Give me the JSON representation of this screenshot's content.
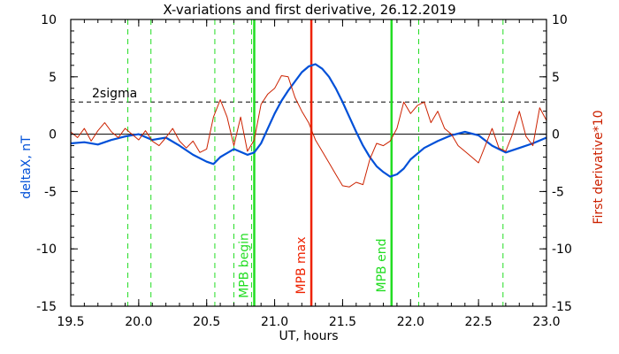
{
  "chart_data": {
    "type": "line",
    "title": "X-variations and first derivative, 26.12.2019",
    "xlabel": "UT, hours",
    "ylabel_left": "deltaX, nT",
    "ylabel_right": "First derivative*10",
    "xlim": [
      19.5,
      23.0
    ],
    "ylim_left": [
      -15,
      10
    ],
    "ylim_right": [
      -15,
      10
    ],
    "x_ticks": [
      "19.5",
      "20.0",
      "20.5",
      "21.0",
      "21.5",
      "22.0",
      "22.5",
      "23.0"
    ],
    "y_ticks_left": [
      "-15",
      "-10",
      "-5",
      "0",
      "5",
      "10"
    ],
    "y_ticks_right": [
      "-15",
      "-10",
      "-5",
      "0",
      "5",
      "10"
    ],
    "colors": {
      "deltaX": "#0050d8",
      "derivative": "#cc2200",
      "mpb": "#22dd22",
      "max": "#ee2200",
      "threshold": "#000000"
    },
    "threshold": {
      "label": "2sigma",
      "value": 2.8
    },
    "zero_line": 0,
    "mpb_begin": {
      "label": "MPB begin",
      "x": 20.85
    },
    "mpb_max": {
      "label": "MPB max",
      "x": 21.27
    },
    "mpb_end": {
      "label": "MPB end",
      "x": 21.86
    },
    "dashed_markers_x": [
      19.92,
      20.09,
      20.56,
      20.7,
      20.83,
      22.06,
      22.68
    ],
    "series": [
      {
        "key": "deltaX",
        "x": [
          19.5,
          19.6,
          19.7,
          19.8,
          19.9,
          20.0,
          20.1,
          20.2,
          20.3,
          20.4,
          20.5,
          20.55,
          20.6,
          20.7,
          20.8,
          20.85,
          20.9,
          20.95,
          21.0,
          21.05,
          21.1,
          21.15,
          21.2,
          21.25,
          21.3,
          21.35,
          21.4,
          21.45,
          21.5,
          21.55,
          21.6,
          21.65,
          21.7,
          21.75,
          21.8,
          21.85,
          21.9,
          21.95,
          22.0,
          22.1,
          22.2,
          22.3,
          22.4,
          22.5,
          22.6,
          22.7,
          22.8,
          22.9,
          23.0
        ],
        "y": [
          -0.8,
          -0.7,
          -0.9,
          -0.5,
          -0.2,
          0.0,
          -0.5,
          -0.3,
          -1.0,
          -1.8,
          -2.4,
          -2.6,
          -2.0,
          -1.3,
          -1.8,
          -1.6,
          -0.8,
          0.5,
          1.8,
          2.9,
          3.8,
          4.6,
          5.4,
          5.9,
          6.1,
          5.7,
          5.0,
          4.0,
          2.8,
          1.5,
          0.2,
          -1.0,
          -2.0,
          -2.8,
          -3.3,
          -3.7,
          -3.5,
          -3.0,
          -2.2,
          -1.2,
          -0.6,
          -0.1,
          0.2,
          -0.1,
          -1.0,
          -1.6,
          -1.2,
          -0.8,
          -0.3
        ]
      },
      {
        "key": "derivative",
        "x": [
          19.5,
          19.55,
          19.6,
          19.65,
          19.7,
          19.75,
          19.8,
          19.85,
          19.9,
          19.95,
          20.0,
          20.05,
          20.1,
          20.15,
          20.2,
          20.25,
          20.3,
          20.35,
          20.4,
          20.45,
          20.5,
          20.55,
          20.6,
          20.65,
          20.7,
          20.75,
          20.8,
          20.85,
          20.9,
          20.95,
          21.0,
          21.05,
          21.1,
          21.15,
          21.2,
          21.25,
          21.3,
          21.35,
          21.4,
          21.45,
          21.5,
          21.55,
          21.6,
          21.65,
          21.7,
          21.75,
          21.8,
          21.85,
          21.9,
          21.95,
          22.0,
          22.05,
          22.1,
          22.15,
          22.2,
          22.25,
          22.3,
          22.35,
          22.4,
          22.45,
          22.5,
          22.55,
          22.6,
          22.65,
          22.7,
          22.75,
          22.8,
          22.85,
          22.9,
          22.95,
          23.0
        ],
        "y": [
          0.2,
          -0.3,
          0.5,
          -0.6,
          0.3,
          1.0,
          0.2,
          -0.3,
          0.5,
          0.0,
          -0.5,
          0.3,
          -0.6,
          -1.0,
          -0.3,
          0.5,
          -0.6,
          -1.2,
          -0.6,
          -1.6,
          -1.3,
          1.5,
          3.0,
          1.5,
          -1.0,
          1.5,
          -1.5,
          -0.5,
          2.6,
          3.5,
          4.0,
          5.1,
          5.0,
          3.2,
          2.0,
          1.0,
          -0.5,
          -1.5,
          -2.5,
          -3.5,
          -4.5,
          -4.6,
          -4.2,
          -4.4,
          -2.2,
          -0.8,
          -1.0,
          -0.6,
          0.5,
          2.8,
          1.8,
          2.5,
          2.8,
          1.0,
          2.0,
          0.5,
          0.0,
          -1.0,
          -1.5,
          -2.0,
          -2.5,
          -1.0,
          0.5,
          -1.2,
          -1.5,
          0.0,
          2.0,
          -0.2,
          -1.0,
          2.3,
          1.2
        ]
      }
    ]
  }
}
